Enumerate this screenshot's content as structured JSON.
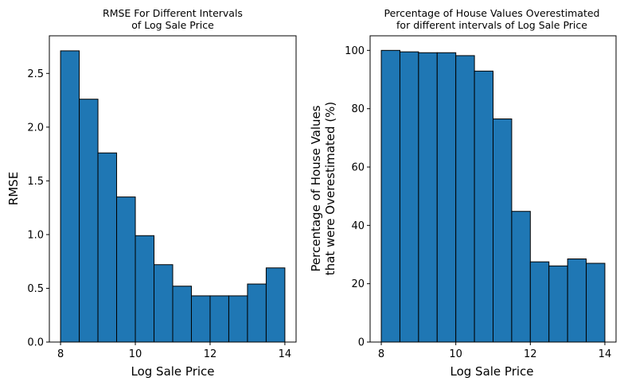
{
  "chart_data": [
    {
      "type": "bar",
      "title_lines": [
        "RMSE For Different Intervals",
        "of Log Sale Price"
      ],
      "xlabel": "Log Sale Price",
      "ylabel": "RMSE",
      "xlim": [
        7.7,
        14.3
      ],
      "ylim": [
        0,
        2.85
      ],
      "xticks": [
        8,
        10,
        12,
        14
      ],
      "xtick_labels": [
        "8",
        "10",
        "12",
        "14"
      ],
      "yticks": [
        0,
        0.5,
        1.0,
        1.5,
        2.0,
        2.5
      ],
      "ytick_labels": [
        "0.0",
        "0.5",
        "1.0",
        "1.5",
        "2.0",
        "2.5"
      ],
      "bin_edges": [
        8,
        8.5,
        9,
        9.5,
        10,
        10.5,
        11,
        11.5,
        12,
        12.5,
        13,
        13.5,
        14
      ],
      "values": [
        2.71,
        2.26,
        1.76,
        1.35,
        0.99,
        0.72,
        0.52,
        0.43,
        0.43,
        0.43,
        0.54,
        0.69
      ]
    },
    {
      "type": "bar",
      "title_lines": [
        "Percentage of House Values Overestimated",
        "for different intervals of Log Sale Price"
      ],
      "xlabel": "Log Sale Price",
      "ylabel_lines": [
        "Percentage of House Values",
        "that were Overestimated (%)"
      ],
      "xlim": [
        7.7,
        14.3
      ],
      "ylim": [
        0,
        105
      ],
      "xticks": [
        8,
        10,
        12,
        14
      ],
      "xtick_labels": [
        "8",
        "10",
        "12",
        "14"
      ],
      "yticks": [
        0,
        20,
        40,
        60,
        80,
        100
      ],
      "ytick_labels": [
        "0",
        "20",
        "40",
        "60",
        "80",
        "100"
      ],
      "bin_edges": [
        8,
        8.5,
        9,
        9.5,
        10,
        10.5,
        11,
        11.5,
        12,
        12.5,
        13,
        13.5,
        14
      ],
      "values": [
        100,
        99.5,
        99.2,
        99.2,
        98.2,
        92.9,
        76.5,
        44.8,
        27.5,
        26.1,
        28.5,
        27.0
      ]
    }
  ],
  "colors": {
    "bar_fill": "#1f77b4",
    "bar_edge": "#000000"
  }
}
